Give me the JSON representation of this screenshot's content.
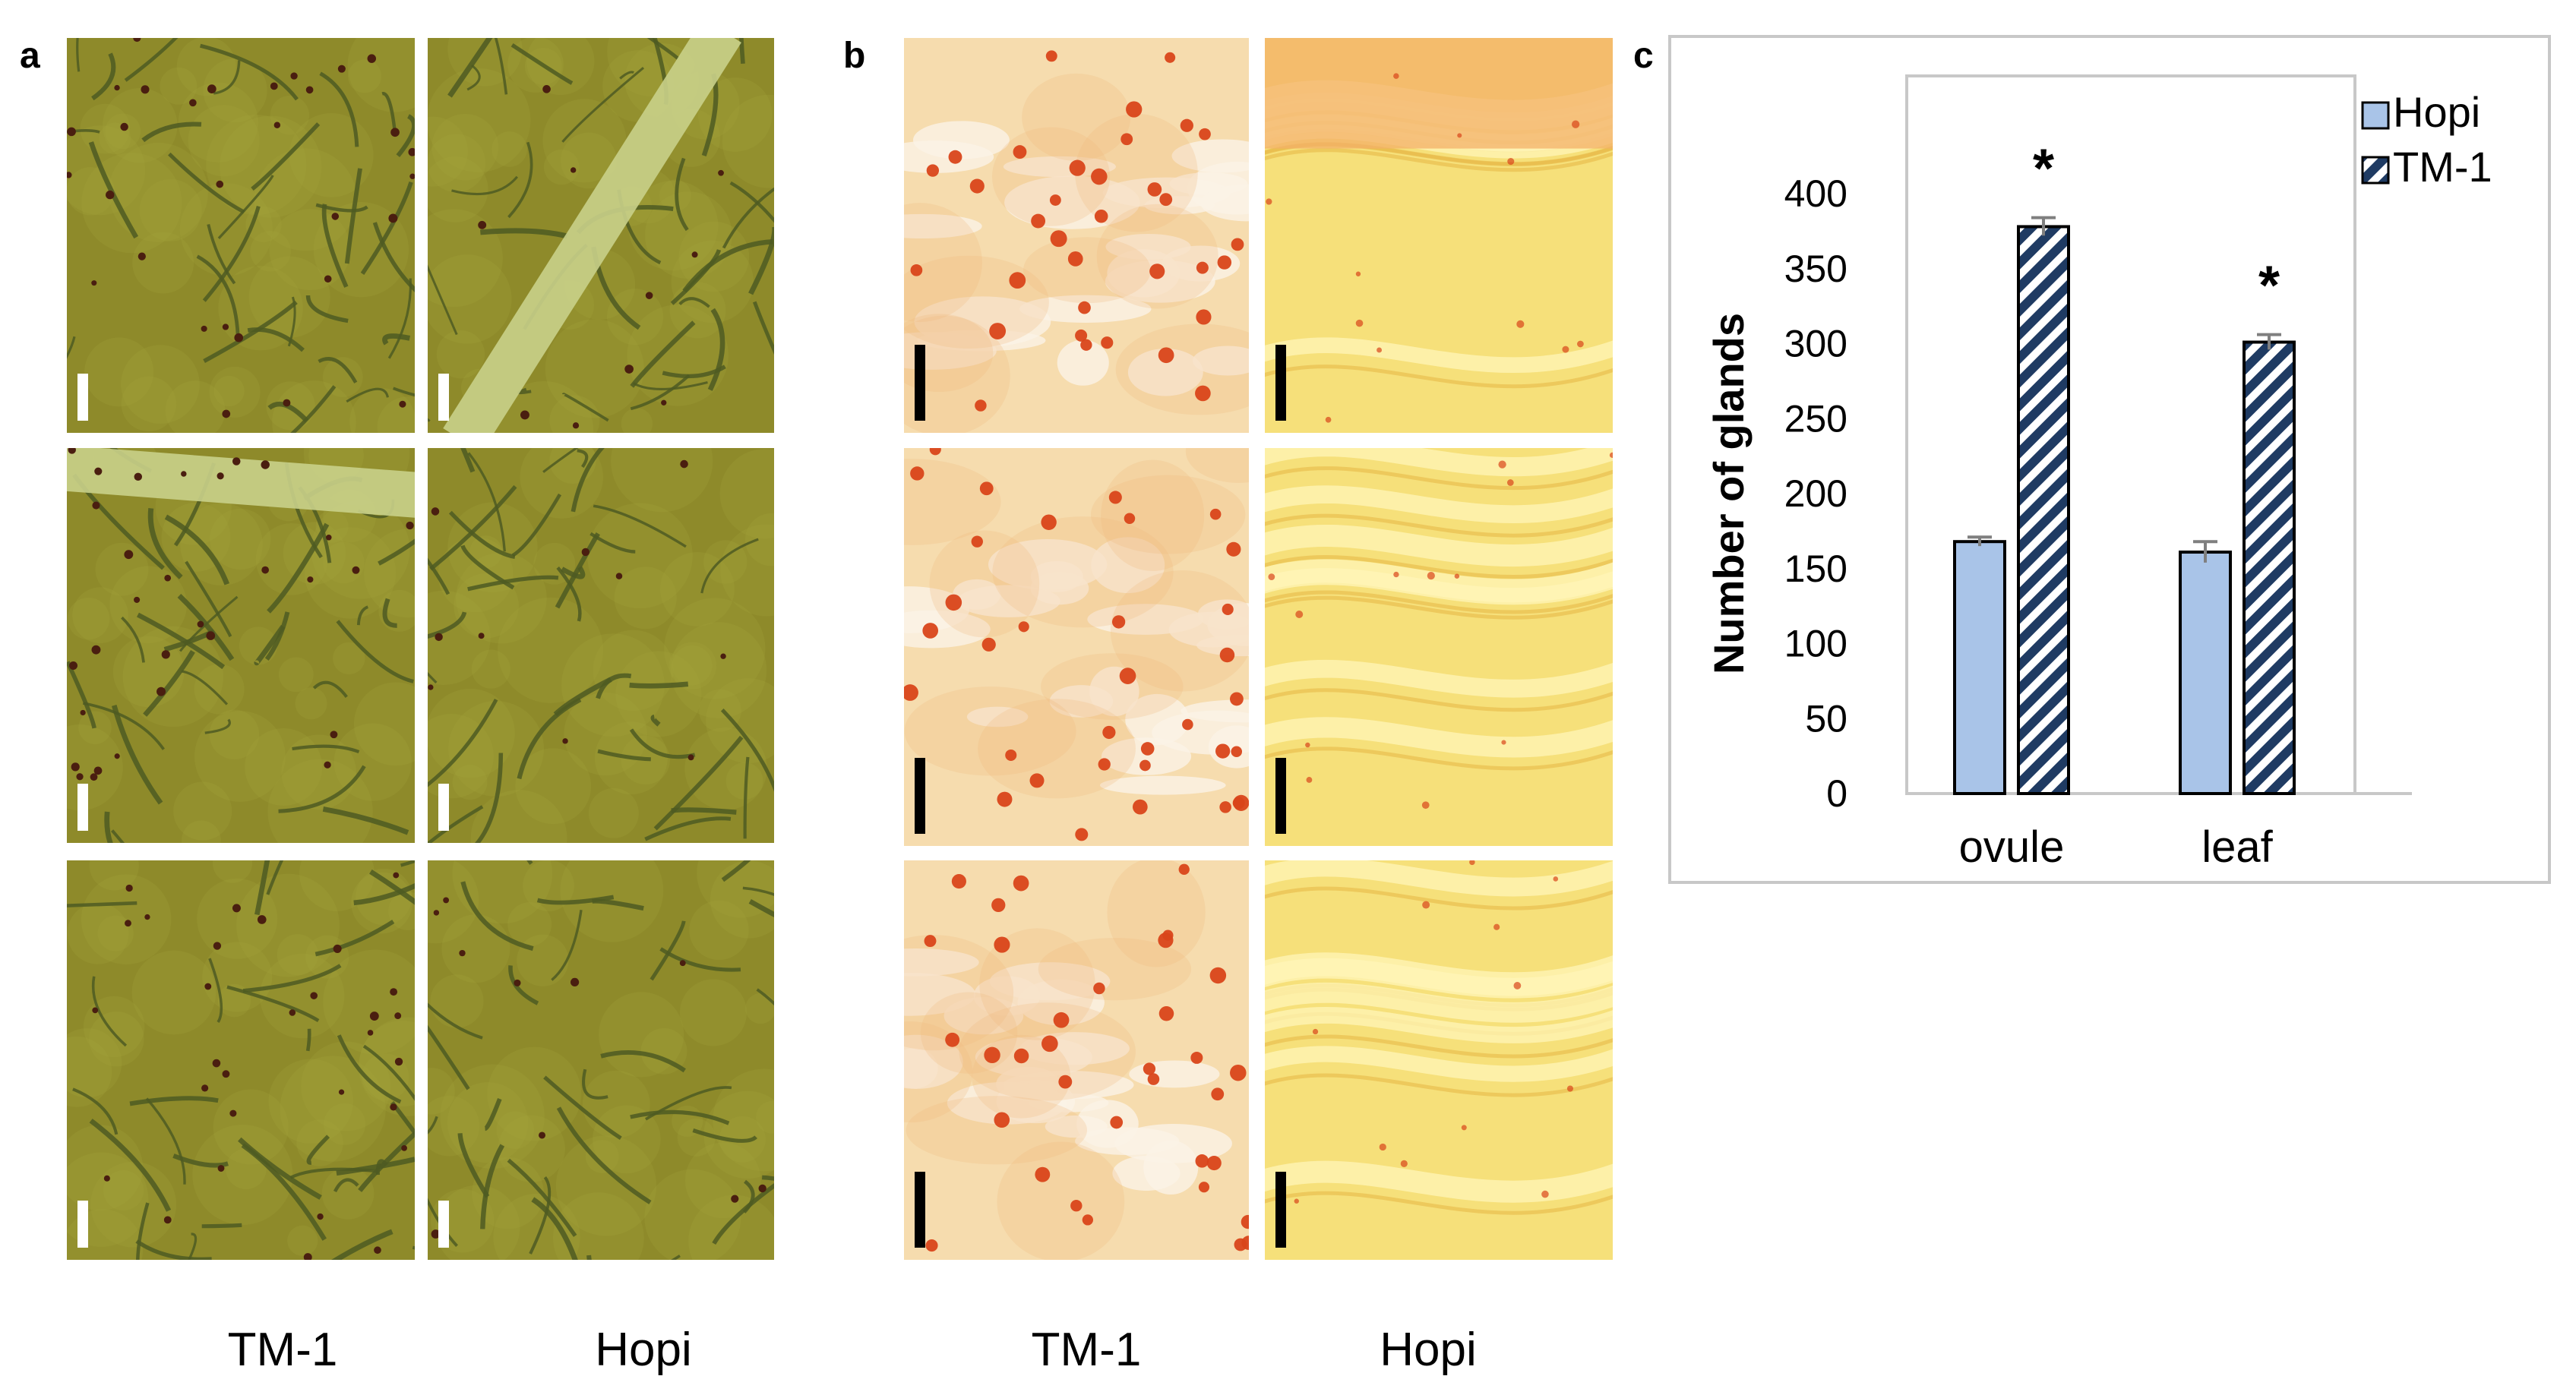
{
  "panels": {
    "a": "a",
    "b": "b",
    "c": "c"
  },
  "panel_a": {
    "columns": [
      "TM-1",
      "Hopi"
    ],
    "description_colors": {
      "leaf_base": "#8e8a2a",
      "vein": "#4e5a22",
      "gland": "#4a1e10"
    }
  },
  "panel_b": {
    "columns": [
      "TM-1",
      "Hopi"
    ],
    "description_colors": {
      "tm1_base": "#f6dcae",
      "hopi_base": "#f6e07a",
      "gland": "#d9441a"
    }
  },
  "chart_data": {
    "type": "bar",
    "categories": [
      "ovule",
      "leaf"
    ],
    "series": [
      {
        "name": "Hopi",
        "values": [
          168,
          161
        ],
        "errors": [
          3,
          7
        ],
        "color": "#a9c4e8",
        "pattern": "solid"
      },
      {
        "name": "TM-1",
        "values": [
          378,
          301
        ],
        "errors": [
          6,
          5
        ],
        "color": "#1f3b63",
        "pattern": "diagonal-stripes"
      }
    ],
    "significance": [
      "*",
      "*"
    ],
    "xlabel": "",
    "ylabel": "Number of glands",
    "ylim": [
      0,
      400
    ],
    "yticks": [
      0,
      50,
      100,
      150,
      200,
      250,
      300,
      350,
      400
    ],
    "legend_placement": "top-right",
    "grid": false
  }
}
